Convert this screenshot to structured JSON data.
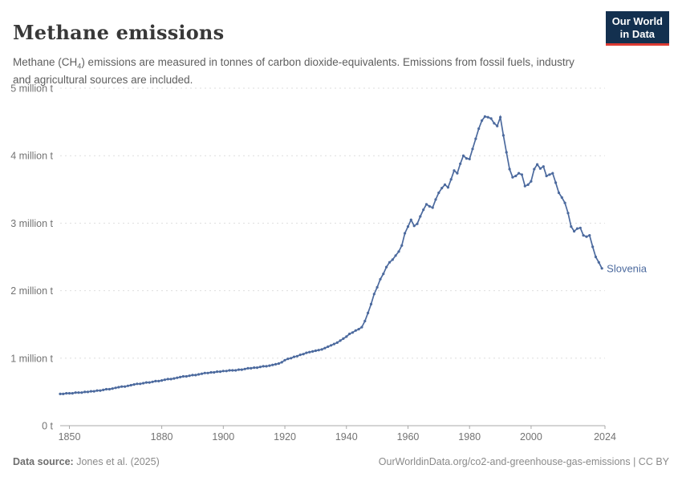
{
  "header": {
    "title": "Methane emissions",
    "subtitle": {
      "pre": "Methane (CH",
      "sub": "4",
      "post": ") emissions are measured in tonnes of carbon dioxide-equivalents. Emissions from fossil fuels, industry and agricultural sources are included."
    },
    "logo": {
      "line1": "Our World",
      "line2": "in Data"
    }
  },
  "footer": {
    "source_label": "Data source:",
    "source_value": " Jones et al. (2025)",
    "credit": "OurWorldinData.org/co2-and-greenhouse-gas-emissions | CC BY"
  },
  "colors": {
    "line": "#4c6a9e",
    "logo_bg": "#13304f",
    "logo_stripe": "#dc3a32",
    "grid": "#dedede",
    "axis": "#a8a8a8",
    "tick_text": "#737373"
  },
  "chart_data": {
    "type": "line",
    "title": "Methane emissions",
    "entity": "Slovenia",
    "y_unit": "million tonnes CO2-equivalents",
    "grid": "horizontal dashed gridlines, solid baseline axis",
    "legend_position": "label at end of line",
    "x_domain": [
      1847,
      2024
    ],
    "ylim": [
      0,
      5
    ],
    "x_ticks": [
      1850,
      1880,
      1900,
      1920,
      1940,
      1960,
      1980,
      2000,
      2024
    ],
    "y_ticks": [
      {
        "value": 0,
        "label": "0 t"
      },
      {
        "value": 1,
        "label": "1 million t"
      },
      {
        "value": 2,
        "label": "2 million t"
      },
      {
        "value": 3,
        "label": "3 million t"
      },
      {
        "value": 4,
        "label": "4 million t"
      },
      {
        "value": 5,
        "label": "5 million t"
      }
    ],
    "year_start": 1847,
    "year_end": 2023,
    "series": [
      {
        "name": "Slovenia",
        "color": "#4c6a9e",
        "values_million_t": [
          0.47,
          0.47,
          0.48,
          0.48,
          0.48,
          0.49,
          0.49,
          0.49,
          0.5,
          0.5,
          0.51,
          0.51,
          0.52,
          0.52,
          0.53,
          0.54,
          0.54,
          0.55,
          0.56,
          0.57,
          0.58,
          0.58,
          0.59,
          0.6,
          0.61,
          0.62,
          0.62,
          0.63,
          0.64,
          0.64,
          0.65,
          0.66,
          0.66,
          0.67,
          0.68,
          0.69,
          0.69,
          0.7,
          0.71,
          0.72,
          0.73,
          0.73,
          0.74,
          0.75,
          0.75,
          0.76,
          0.77,
          0.78,
          0.78,
          0.79,
          0.79,
          0.8,
          0.8,
          0.81,
          0.81,
          0.82,
          0.82,
          0.82,
          0.83,
          0.83,
          0.84,
          0.85,
          0.85,
          0.86,
          0.86,
          0.87,
          0.88,
          0.88,
          0.89,
          0.9,
          0.91,
          0.92,
          0.94,
          0.97,
          0.99,
          1.0,
          1.02,
          1.03,
          1.05,
          1.06,
          1.08,
          1.09,
          1.1,
          1.11,
          1.12,
          1.13,
          1.15,
          1.17,
          1.19,
          1.21,
          1.23,
          1.26,
          1.29,
          1.32,
          1.36,
          1.38,
          1.41,
          1.43,
          1.46,
          1.55,
          1.67,
          1.8,
          1.95,
          2.05,
          2.17,
          2.25,
          2.35,
          2.42,
          2.46,
          2.52,
          2.58,
          2.67,
          2.85,
          2.95,
          3.05,
          2.96,
          2.99,
          3.1,
          3.2,
          3.28,
          3.25,
          3.23,
          3.35,
          3.45,
          3.52,
          3.57,
          3.53,
          3.65,
          3.78,
          3.74,
          3.88,
          4.0,
          3.96,
          3.95,
          4.1,
          4.25,
          4.4,
          4.52,
          4.58,
          4.57,
          4.55,
          4.48,
          4.44,
          4.57,
          4.3,
          4.05,
          3.8,
          3.68,
          3.7,
          3.74,
          3.72,
          3.55,
          3.57,
          3.62,
          3.8,
          3.87,
          3.81,
          3.84,
          3.7,
          3.72,
          3.74,
          3.6,
          3.45,
          3.38,
          3.3,
          3.15,
          2.95,
          2.88,
          2.92,
          2.93,
          2.82,
          2.8,
          2.82,
          2.65,
          2.5,
          2.42,
          2.33
        ]
      }
    ]
  }
}
